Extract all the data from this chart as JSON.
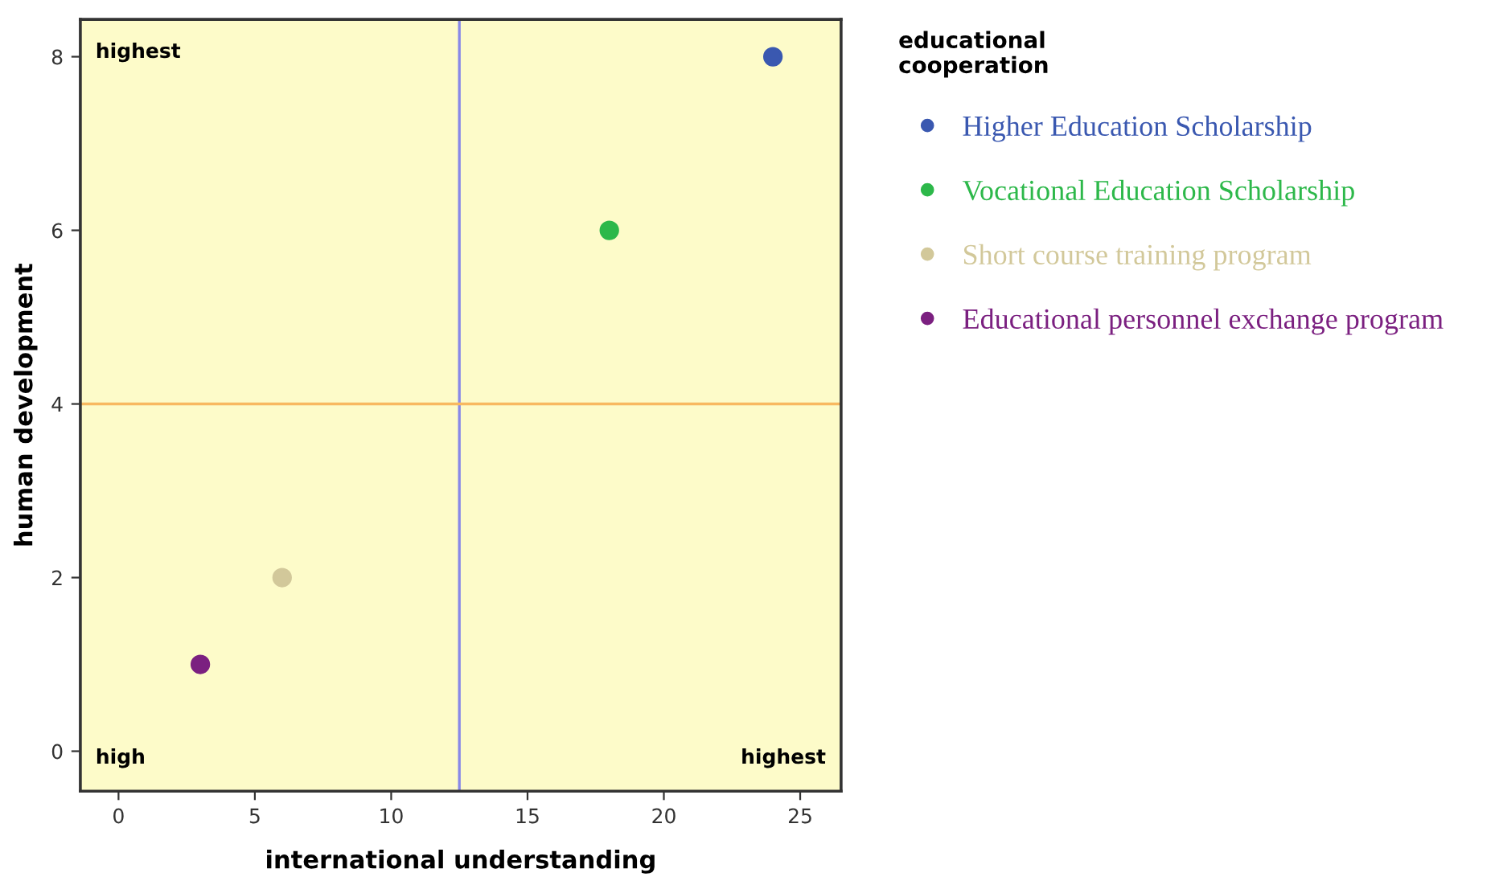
{
  "chart_data": {
    "type": "scatter",
    "xlabel": "international understanding",
    "ylabel": "human development",
    "legend_title": "educational\ncooperation",
    "series": [
      {
        "name": "Higher Education Scholarship",
        "color": "#3a58b0",
        "x": [
          24
        ],
        "values": [
          8
        ]
      },
      {
        "name": "Vocational Education Scholarship",
        "color": "#2db84a",
        "x": [
          18
        ],
        "values": [
          6
        ]
      },
      {
        "name": "Short course training program",
        "color": "#d2c89a",
        "x": [
          6
        ],
        "values": [
          2
        ]
      },
      {
        "name": "Educational personnel exchange program",
        "color": "#7b2080",
        "x": [
          3
        ],
        "values": [
          1
        ]
      }
    ],
    "xlim": [
      -1.4,
      26.5
    ],
    "xticks": [
      0,
      5,
      10,
      15,
      20,
      25
    ],
    "ylim": [
      -0.46,
      8.43
    ],
    "yticks": [
      0,
      2,
      4,
      6,
      8
    ],
    "ref_lines": [
      {
        "axis": "x",
        "value": 12.5,
        "color": "#8888e8"
      },
      {
        "axis": "y",
        "value": 4,
        "color": "#f8b860"
      }
    ],
    "annotations": [
      "highest",
      "high",
      "highest"
    ],
    "marker": "circle",
    "grid": false,
    "legend": "right"
  }
}
